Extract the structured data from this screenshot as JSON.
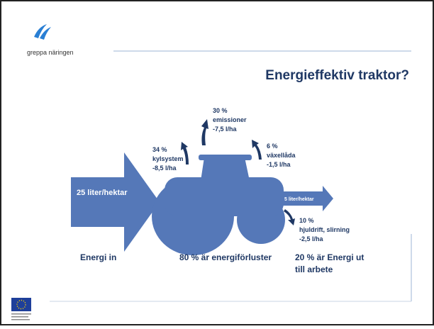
{
  "header": {
    "logo_text": "greppa näringen",
    "title": "Energieffektiv traktor?"
  },
  "input": {
    "arrow_label": "25 liter/hektar",
    "caption": "Energi in"
  },
  "losses": [
    {
      "percent": "30 %",
      "label": "emissioner",
      "amount": "-7,5 l/ha"
    },
    {
      "percent": "34 %",
      "label": "kylsystem",
      "amount": "-8,5 l/ha"
    },
    {
      "percent": "6 %",
      "label": "växellåda",
      "amount": "-1,5 l/ha"
    },
    {
      "percent": "10 %",
      "label": "hjuldrift, slirning",
      "amount": "-2,5 l/ha"
    }
  ],
  "losses_caption": "80 % är energiförluster",
  "output": {
    "arrow_label": "5 liter/hektar",
    "caption_lines": [
      "20 % är Energi ut",
      "till arbete"
    ]
  }
}
